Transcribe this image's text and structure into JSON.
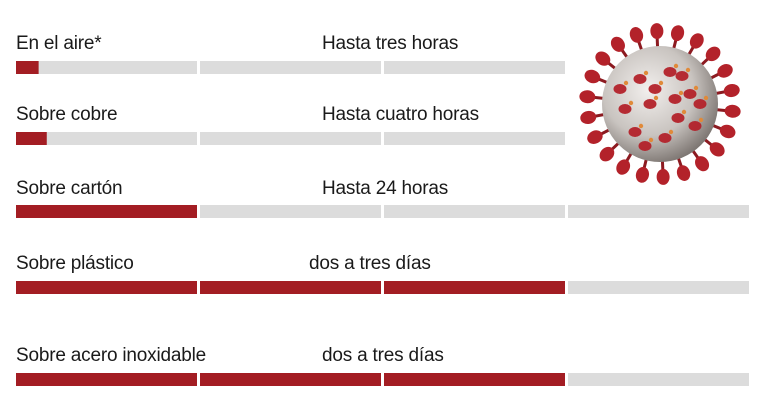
{
  "chart_data": {
    "type": "bar",
    "segments": 4,
    "max_value": 4,
    "colors": {
      "fill": "#a31d23",
      "track": "#dcdcdc",
      "text": "#1a1a1a"
    },
    "rows": [
      {
        "label": "En el aire*",
        "duration": "Hasta tres horas",
        "value": 0.125
      },
      {
        "label": "Sobre cobre",
        "duration": "Hasta cuatro horas",
        "value": 0.17
      },
      {
        "label": "Sobre cartón",
        "duration": "Hasta 24 horas",
        "value": 1.0
      },
      {
        "label": "Sobre plástico",
        "duration": "dos a tres días",
        "value": 3.0
      },
      {
        "label": "Sobre acero inoxidable",
        "duration": "dos a tres días",
        "value": 3.0
      }
    ]
  },
  "illustration": {
    "icon": "coronavirus-icon",
    "colors": {
      "body": "#c9c4c0",
      "spike": "#b3222a",
      "accent": "#e08a3a"
    }
  }
}
